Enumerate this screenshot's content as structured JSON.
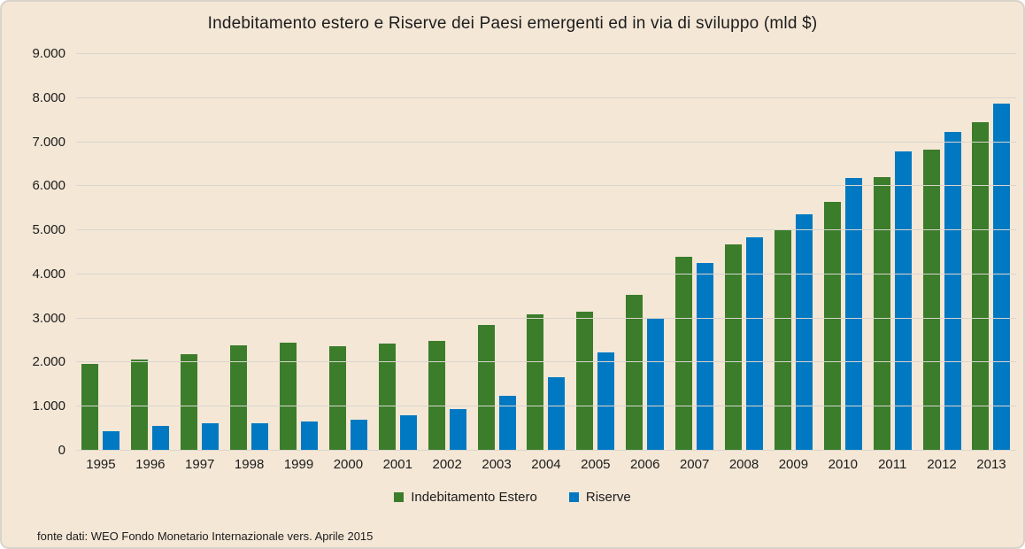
{
  "chart_data": {
    "type": "bar",
    "title": "Indebitamento estero e Riserve dei Paesi emergenti ed in via di sviluppo (mld $)",
    "unit": "mld $",
    "categories": [
      "1995",
      "1996",
      "1997",
      "1998",
      "1999",
      "2000",
      "2001",
      "2002",
      "2003",
      "2004",
      "2005",
      "2006",
      "2007",
      "2008",
      "2009",
      "2010",
      "2011",
      "2012",
      "2013"
    ],
    "series": [
      {
        "name": "Indebitamento Estero",
        "color": "#3B7D2A",
        "values": [
          1970,
          2070,
          2190,
          2390,
          2450,
          2380,
          2430,
          2500,
          2860,
          3100,
          3150,
          3530,
          4390,
          4690,
          5030,
          5640,
          6210,
          6830,
          7450
        ]
      },
      {
        "name": "Riserve",
        "color": "#0079C2",
        "values": [
          440,
          560,
          620,
          630,
          660,
          710,
          800,
          940,
          1240,
          1670,
          2230,
          3000,
          4260,
          4850,
          5370,
          6180,
          6790,
          7240,
          7880
        ]
      }
    ],
    "ylim": [
      0,
      9000
    ],
    "yticks": [
      {
        "value": 0,
        "label": "0"
      },
      {
        "value": 1000,
        "label": "1.000"
      },
      {
        "value": 2000,
        "label": "2.000"
      },
      {
        "value": 3000,
        "label": "3.000"
      },
      {
        "value": 4000,
        "label": "4.000"
      },
      {
        "value": 5000,
        "label": "5.000"
      },
      {
        "value": 6000,
        "label": "6.000"
      },
      {
        "value": 7000,
        "label": "7.000"
      },
      {
        "value": 8000,
        "label": "8.000"
      },
      {
        "value": 9000,
        "label": "9.000"
      }
    ],
    "grid": true,
    "legend_position": "bottom"
  },
  "footer": {
    "source_note": "fonte dati: WEO Fondo Monetario Internazionale vers. Aprile 2015"
  },
  "colors": {
    "background": "#F4E7D6",
    "border": "#D9D3CA",
    "gridline": "#DAD5CD",
    "text": "#1C1C1C",
    "series_green": "#3B7D2A",
    "series_blue": "#0079C2"
  }
}
